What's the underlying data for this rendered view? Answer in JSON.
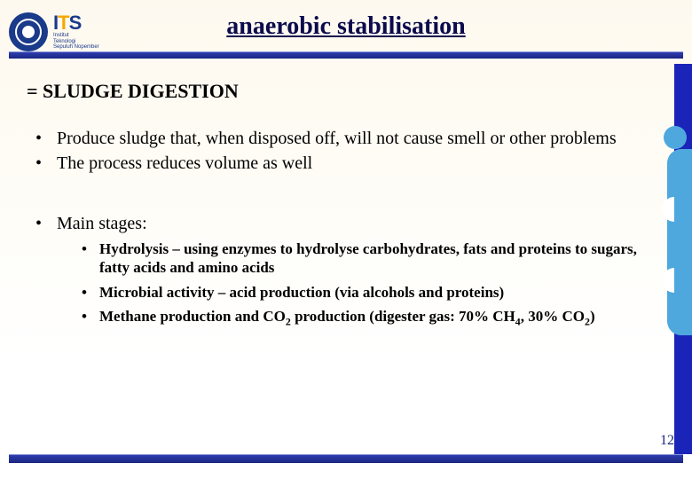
{
  "colors": {
    "title_color": "#0b0b4d",
    "blue_dark": "#1a2580",
    "blue_mid": "#2e3db0",
    "blue_light": "#4ea8de",
    "logo_blue": "#1a3a8a",
    "logo_orange": "#f7a800",
    "bg_top": "#fef9ef",
    "bg_bottom": "#ffffff"
  },
  "typography": {
    "title_size_pt": 28,
    "subtitle_size_pt": 22,
    "bullet_size_pt": 20,
    "sub_bullet_size_pt": 17,
    "font_family": "Times New Roman"
  },
  "logo": {
    "its_i": "I",
    "its_t": "T",
    "its_s": "S",
    "sub1": "Institut",
    "sub2": "Teknologi",
    "sub3": "Sepuluh Nopember"
  },
  "title": "anaerobic stabilisation",
  "subtitle": "= SLUDGE DIGESTION",
  "bullets": {
    "b1": "Produce sludge that, when disposed off, will not cause smell or other problems",
    "b2": "The process reduces volume as well",
    "b3": "Main stages:",
    "sub": {
      "s1": "Hydrolysis – using enzymes to hydrolyse carbohydrates, fats and proteins to sugars, fatty acids and amino acids",
      "s2": "Microbial activity – acid production (via alcohols and proteins)",
      "s3_a": "Methane production and CO",
      "s3_b": " production (digester gas: 70% CH",
      "s3_c": ", 30% CO",
      "s3_d": ")",
      "sub_2": "2",
      "sub_4": "4"
    }
  },
  "page_number": "12"
}
